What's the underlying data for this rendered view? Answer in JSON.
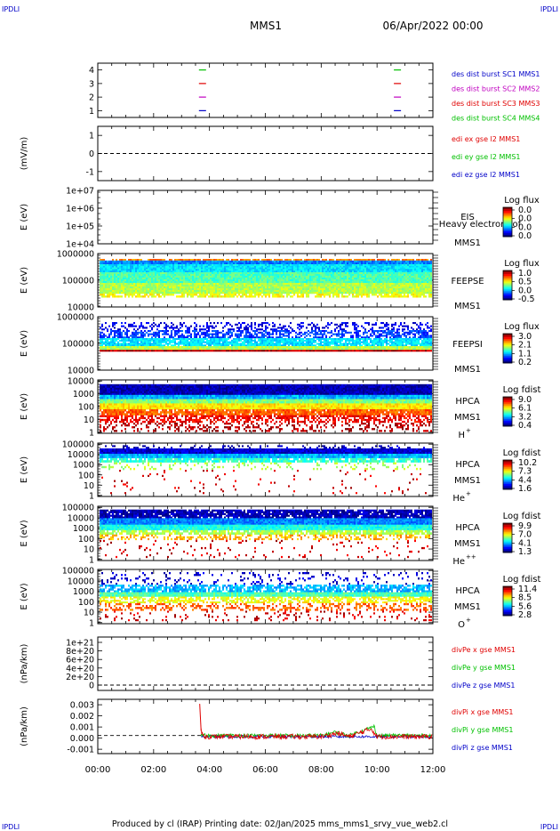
{
  "corner_left": "IPDLI",
  "corner_right": "IPDLI",
  "header": {
    "spacecraft": "MMS1",
    "datetime": "06/Apr/2022 00:00"
  },
  "footer": "Produced by cl (IRAP)   Printing date: 02/Jan/2025   mms_mms1_srvy_vue_web2.cl",
  "x_axis": {
    "range_hours": [
      0,
      12
    ],
    "tick_labels": [
      "00:00",
      "02:00",
      "04:00",
      "06:00",
      "08:00",
      "10:00",
      "12:00"
    ]
  },
  "colors": {
    "blue": "#0000c8",
    "magenta": "#c000c0",
    "red": "#e00000",
    "green": "#00c000",
    "axis": "#000000"
  },
  "chart_data": [
    {
      "type": "scatter",
      "id": "burst",
      "y_tick_labels": [
        "4",
        "3",
        "2",
        "1"
      ],
      "ylim": [
        0.5,
        4.5
      ],
      "legend": [
        {
          "text": "des dist burst SC1 MMS1",
          "color": "#0000c8"
        },
        {
          "text": "des dist burst SC2 MMS2",
          "color": "#c000c0"
        },
        {
          "text": "des dist burst SC3 MMS3",
          "color": "#e00000"
        },
        {
          "text": "des dist burst SC4 MMS4",
          "color": "#00c000"
        }
      ],
      "series": [
        {
          "level": 4,
          "color": "#00c000",
          "x_hours": [
            3.75,
            10.73
          ]
        },
        {
          "level": 3,
          "color": "#e00000",
          "x_hours": [
            3.75,
            10.73
          ]
        },
        {
          "level": 2,
          "color": "#c000c0",
          "x_hours": [
            3.75,
            10.73
          ]
        },
        {
          "level": 1,
          "color": "#0000c8",
          "x_hours": [
            3.75,
            10.73
          ]
        }
      ]
    },
    {
      "type": "line",
      "id": "edi",
      "ylabel": "(mV/m)",
      "y_tick_labels": [
        "1",
        "0",
        "-1"
      ],
      "ylim": [
        -1.5,
        1.5
      ],
      "legend": [
        {
          "text": "edi ex gse l2 MMS1",
          "color": "#e00000"
        },
        {
          "text": "edi ey gse l2 MMS1",
          "color": "#00c000"
        },
        {
          "text": "edi ez gse l2 MMS1",
          "color": "#0000c8"
        }
      ]
    },
    {
      "type": "heatmap",
      "id": "eis",
      "ylabel": "E (eV)",
      "y_tick_labels": [
        "1e+07",
        "1e+06",
        "1e+05",
        "1e+04"
      ],
      "label_lines": [
        "EIS",
        "Heavy electron tof",
        "MMS1"
      ],
      "colorbar": {
        "title": "Log flux",
        "labels": [
          "0.0",
          "0.0",
          "0.0",
          "0.0"
        ]
      }
    },
    {
      "type": "heatmap",
      "id": "feepse",
      "ylabel": "E (eV)",
      "y_tick_labels": [
        "1000000",
        "100000",
        "10000"
      ],
      "label_lines": [
        "FEEPSE",
        "MMS1"
      ],
      "colorbar": {
        "title": "Log flux",
        "labels": [
          "1.0",
          "0.5",
          "0.0",
          "-0.5"
        ]
      }
    },
    {
      "type": "heatmap",
      "id": "feepsi",
      "ylabel": "E (eV)",
      "y_tick_labels": [
        "1000000",
        "100000",
        "10000"
      ],
      "label_lines": [
        "FEEPSI",
        "MMS1"
      ],
      "colorbar": {
        "title": "Log flux",
        "labels": [
          "3.0",
          "2.1",
          "1.1",
          "0.2"
        ]
      }
    },
    {
      "type": "heatmap",
      "id": "hpca_h",
      "ylabel": "E (eV)",
      "y_tick_labels": [
        "10000",
        "1000",
        "100",
        "10",
        "1"
      ],
      "label_lines": [
        "HPCA",
        "MMS1",
        "H"
      ],
      "species_sup": "+",
      "colorbar": {
        "title": "Log fdist",
        "labels": [
          "9.0",
          "6.1",
          "3.2",
          "0.4"
        ]
      }
    },
    {
      "type": "heatmap",
      "id": "hpca_he",
      "ylabel": "E (eV)",
      "y_tick_labels": [
        "100000",
        "10000",
        "1000",
        "100",
        "10",
        "1"
      ],
      "label_lines": [
        "HPCA",
        "MMS1",
        "He"
      ],
      "species_sup": "+",
      "colorbar": {
        "title": "Log fdist",
        "labels": [
          "10.2",
          "7.3",
          "4.4",
          "1.6"
        ]
      }
    },
    {
      "type": "heatmap",
      "id": "hpca_hepp",
      "ylabel": "E (eV)",
      "y_tick_labels": [
        "100000",
        "10000",
        "1000",
        "100",
        "10",
        "1"
      ],
      "label_lines": [
        "HPCA",
        "MMS1",
        "He"
      ],
      "species_sup": "++",
      "colorbar": {
        "title": "Log fdist",
        "labels": [
          "9.9",
          "7.0",
          "4.1",
          "1.3"
        ]
      }
    },
    {
      "type": "heatmap",
      "id": "hpca_o",
      "ylabel": "E (eV)",
      "y_tick_labels": [
        "100000",
        "10000",
        "1000",
        "100",
        "10",
        "1"
      ],
      "label_lines": [
        "HPCA",
        "MMS1",
        "O"
      ],
      "species_sup": "+",
      "colorbar": {
        "title": "Log fdist",
        "labels": [
          "11.4",
          "8.5",
          "5.6",
          "2.8"
        ]
      }
    },
    {
      "type": "line",
      "id": "divpe",
      "ylabel": "(nPa/km)",
      "y_tick_labels": [
        "1e+21",
        "8e+20",
        "6e+20",
        "4e+20",
        "2e+20",
        "0"
      ],
      "ylim": [
        -1e+19,
        1.06e+21
      ],
      "legend": [
        {
          "text": "divPe x gse MMS1",
          "color": "#e00000"
        },
        {
          "text": "divPe y gse MMS1",
          "color": "#00c000"
        },
        {
          "text": "divPe z gse MMS1",
          "color": "#0000c8"
        }
      ]
    },
    {
      "type": "line",
      "id": "divpi",
      "ylabel": "(nPa/km)",
      "y_tick_labels": [
        "0.003",
        "0.002",
        "0.001",
        "0.000",
        "-0.001"
      ],
      "ylim": [
        -0.0016,
        0.0032
      ],
      "legend": [
        {
          "text": "divPi x gse MMS1",
          "color": "#e00000"
        },
        {
          "text": "divPi y gse MMS1",
          "color": "#00c000"
        },
        {
          "text": "divPi z gse MMS1",
          "color": "#0000c8"
        }
      ],
      "data_start_hours": 3.7,
      "series": [
        {
          "name": "divPi x gse MMS1",
          "color": "#e00000",
          "x_hours": [
            3.65,
            3.7,
            3.8,
            5.0,
            6.5,
            8.0,
            8.6,
            9.0,
            9.8,
            10.0,
            11.0,
            12.0
          ],
          "values": [
            0.0028,
            0.0004,
            -0.0001,
            -0.0001,
            -0.0001,
            -0.0001,
            0.0002,
            -0.0001,
            0.0006,
            -0.0001,
            -0.0001,
            -0.0001
          ]
        },
        {
          "name": "divPi y gse MMS1",
          "color": "#00c000",
          "x_hours": [
            3.7,
            5.0,
            6.5,
            8.0,
            8.5,
            9.0,
            9.9,
            10.0,
            11.0,
            12.0
          ],
          "values": [
            0.0,
            0.0,
            0.0,
            0.0,
            0.0003,
            0.0,
            0.0008,
            0.0,
            0.0,
            0.0
          ]
        },
        {
          "name": "divPi z gse MMS1",
          "color": "#0000c8",
          "x_hours": [
            3.7,
            5.0,
            6.5,
            8.0,
            9.0,
            10.0,
            11.0,
            12.0
          ],
          "values": [
            -0.0001,
            -0.0001,
            -0.0001,
            -0.0001,
            -0.0001,
            -0.0001,
            -0.0001,
            -0.0001
          ]
        }
      ]
    }
  ]
}
